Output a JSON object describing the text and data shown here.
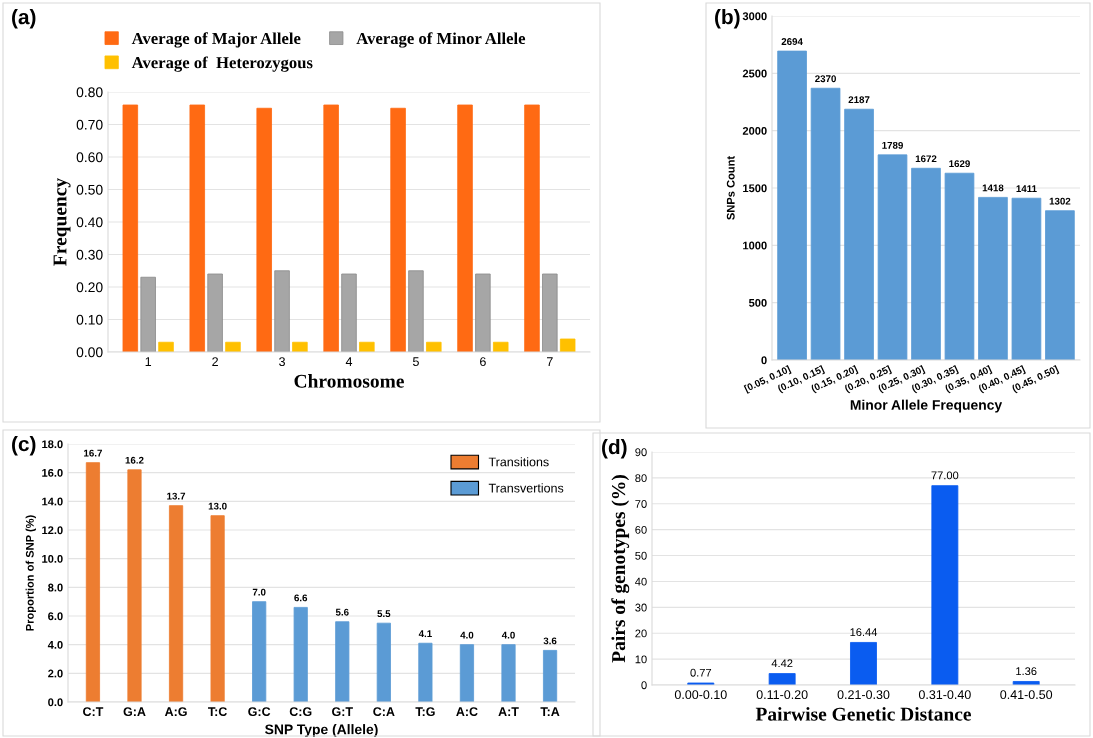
{
  "chart_data": [
    {
      "type": "bar",
      "title": "(a)",
      "xlabel": "Chromosome",
      "ylabel": "Frequency",
      "categories": [
        "1",
        "2",
        "3",
        "4",
        "5",
        "6",
        "7"
      ],
      "series": [
        {
          "name": "Average of Major Allele",
          "color": "#ff6a13",
          "values": [
            0.76,
            0.76,
            0.75,
            0.76,
            0.75,
            0.76,
            0.76
          ]
        },
        {
          "name": "Average of Minor Allele",
          "color": "#a6a6a6",
          "values": [
            0.23,
            0.24,
            0.25,
            0.24,
            0.25,
            0.24,
            0.24
          ]
        },
        {
          "name": "Average of  Heterozygous",
          "color": "#ffc000",
          "values": [
            0.03,
            0.03,
            0.03,
            0.03,
            0.03,
            0.03,
            0.04
          ]
        }
      ],
      "ylim": [
        0,
        0.8
      ],
      "yticks": [
        {
          "value": 0,
          "label": "0.00"
        },
        {
          "value": 0.1,
          "label": "0.10"
        },
        {
          "value": 0.2,
          "label": "0.20"
        },
        {
          "value": 0.3,
          "label": "0.30"
        },
        {
          "value": 0.4,
          "label": "0.40"
        },
        {
          "value": 0.5,
          "label": "0.50"
        },
        {
          "value": 0.6,
          "label": "0.60"
        },
        {
          "value": 0.7,
          "label": "0.70"
        },
        {
          "value": 0.8,
          "label": "0.80"
        }
      ],
      "grid": "y",
      "legend": "top"
    },
    {
      "type": "bar",
      "title": "(b)",
      "xlabel": "Minor Allele Frequency",
      "ylabel": "SNPs Count",
      "categories": [
        "[0.05, 0.10]",
        "(0.10, 0.15]",
        "(0.15, 0.20]",
        "(0.20, 0.25]",
        "(0.25, 0.30]",
        "(0.30, 0.35]",
        "(0.35, 0.40]",
        "(0.40, 0.45]",
        "(0.45, 0.50]"
      ],
      "series": [
        {
          "color": "#5b9bd5",
          "values": [
            2694,
            2370,
            2187,
            1789,
            1672,
            1629,
            1418,
            1411,
            1302
          ]
        }
      ],
      "ylim": [
        0,
        3000
      ],
      "yticks": [
        0,
        500,
        1000,
        1500,
        2000,
        2500,
        3000
      ],
      "grid": "y",
      "data_labels": true
    },
    {
      "type": "bar",
      "title": "(c)",
      "xlabel": "SNP Type (Allele)",
      "ylabel": "Proportion of SNP (%)",
      "categories": [
        "C:T",
        "G:A",
        "A:G",
        "T:C",
        "G:C",
        "C:G",
        "G:T",
        "C:A",
        "T:G",
        "A:C",
        "A:T",
        "T:A"
      ],
      "stacked": true,
      "series": [
        {
          "name": "Transitions",
          "color": "#ed7d31",
          "values": [
            16.7,
            16.2,
            13.7,
            13.0,
            null,
            null,
            null,
            null,
            null,
            null,
            null,
            null
          ],
          "value_labels": [
            "16.7",
            "16.2",
            "13.7",
            "13.0",
            null,
            null,
            null,
            null,
            null,
            null,
            null,
            null
          ]
        },
        {
          "name": "Transvertions",
          "color": "#5b9bd5",
          "values": [
            null,
            null,
            null,
            null,
            7.0,
            6.6,
            5.6,
            5.5,
            4.1,
            4.0,
            4.0,
            3.6
          ],
          "value_labels": [
            null,
            null,
            null,
            null,
            "7.0",
            "6.6",
            "5.6",
            "5.5",
            "4.1",
            "4.0",
            "4.0",
            "3.6"
          ]
        }
      ],
      "ylim": [
        0,
        18
      ],
      "yticks": [
        {
          "value": 0,
          "label": "0.0"
        },
        {
          "value": 2,
          "label": "2.0"
        },
        {
          "value": 4,
          "label": "4.0"
        },
        {
          "value": 6,
          "label": "6.0"
        },
        {
          "value": 8,
          "label": "8.0"
        },
        {
          "value": 10,
          "label": "10.0"
        },
        {
          "value": 12,
          "label": "12.0"
        },
        {
          "value": 14,
          "label": "14.0"
        },
        {
          "value": 16,
          "label": "16.0"
        },
        {
          "value": 18,
          "label": "18.0"
        }
      ],
      "grid": "y",
      "legend": "top right"
    },
    {
      "type": "bar",
      "title": "(d)",
      "xlabel": "Pairwise Genetic Distance",
      "ylabel": "Pairs of genotypes (%)",
      "categories": [
        "0.00-0.10",
        "0.11-0.20",
        "0.21-0.30",
        "0.31-0.40",
        "0.41-0.50"
      ],
      "series": [
        {
          "color": "#0a5cf0",
          "values": [
            0.77,
            4.42,
            16.44,
            77.0,
            1.36
          ],
          "value_labels": [
            "0.77",
            "4.42",
            "16.44",
            "77.00",
            "1.36"
          ]
        }
      ],
      "ylim": [
        0,
        90
      ],
      "yticks": [
        0,
        10,
        20,
        30,
        40,
        50,
        60,
        70,
        80,
        90
      ],
      "grid": "y"
    }
  ]
}
